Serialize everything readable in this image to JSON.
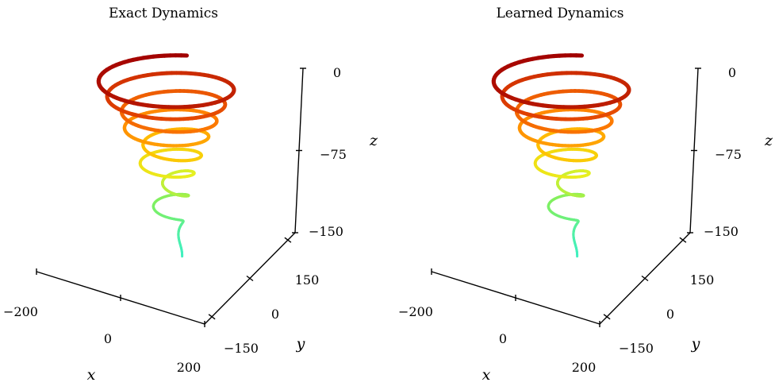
{
  "chart_data": [
    {
      "type": "line",
      "title": "Exact Dynamics",
      "xlabel": "x",
      "ylabel": "y",
      "zlabel": "z",
      "x_ticks": [
        "−200",
        "0",
        "200"
      ],
      "y_ticks": [
        "−150",
        "0",
        "150"
      ],
      "z_ticks": [
        "0",
        "−75",
        "−150"
      ],
      "xlim": [
        -200,
        200
      ],
      "ylim": [
        -150,
        150
      ],
      "zlim": [
        -150,
        0
      ],
      "colormap": [
        "#40f0c0",
        "#80f060",
        "#e8f020",
        "#ffc000",
        "#ff8000",
        "#e04000",
        "#a00000"
      ],
      "series": [
        {
          "description_free": true,
          "x": [
            0,
            -10,
            10,
            -30,
            30,
            -60,
            60,
            -100,
            100,
            -150,
            150,
            -180,
            180,
            -180,
            180
          ],
          "y": [
            0,
            5,
            -5,
            20,
            -20,
            40,
            -40,
            70,
            -70,
            100,
            -100,
            120,
            -120,
            125,
            -125
          ],
          "z": [
            -150,
            -145,
            -135,
            -120,
            -105,
            -90,
            -75,
            -60,
            -50,
            -40,
            -30,
            -20,
            -12,
            -5,
            0
          ]
        }
      ]
    },
    {
      "type": "line",
      "title": "Learned Dynamics",
      "xlabel": "x",
      "ylabel": "y",
      "zlabel": "z",
      "x_ticks": [
        "−200",
        "0",
        "200"
      ],
      "y_ticks": [
        "−150",
        "0",
        "150"
      ],
      "z_ticks": [
        "0",
        "−75",
        "−150"
      ],
      "xlim": [
        -200,
        200
      ],
      "ylim": [
        -150,
        150
      ],
      "zlim": [
        -150,
        0
      ],
      "colormap": [
        "#40f0c0",
        "#80f060",
        "#e8f020",
        "#ffc000",
        "#ff8000",
        "#e04000",
        "#a00000"
      ],
      "series": [
        {
          "x": [
            0,
            -10,
            10,
            -30,
            30,
            -60,
            60,
            -100,
            100,
            -150,
            150,
            -180,
            180,
            -180,
            180
          ],
          "y": [
            0,
            5,
            -5,
            20,
            -20,
            40,
            -40,
            70,
            -70,
            100,
            -100,
            120,
            -120,
            125,
            -125
          ],
          "z": [
            -150,
            -145,
            -135,
            -120,
            -105,
            -90,
            -75,
            -60,
            -50,
            -40,
            -30,
            -20,
            -12,
            -5,
            0
          ]
        }
      ]
    }
  ]
}
